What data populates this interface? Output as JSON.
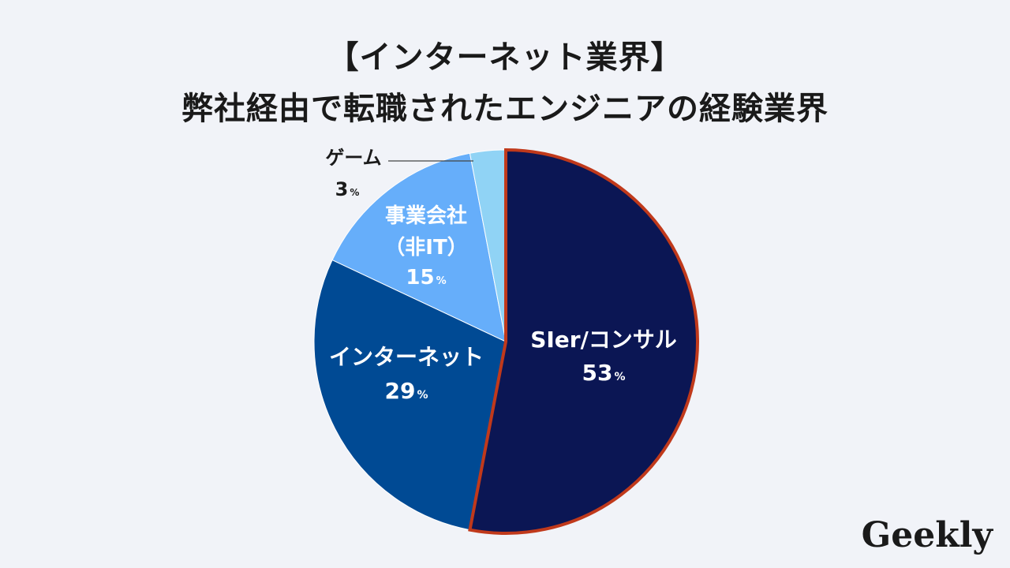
{
  "title": {
    "line1": "【インターネット業界】",
    "line2": "弊社経由で転職されたエンジニアの経験業界"
  },
  "logo_text": "Geekly",
  "chart_data": {
    "type": "pie",
    "title": "【インターネット業界】弊社経由で転職されたエンジニアの経験業界",
    "unit": "%",
    "start_angle_deg": 0,
    "direction": "clockwise",
    "highlighted_slice": 0,
    "highlight_color": "#c0391b",
    "slices": [
      {
        "label": "SIer/コンサル",
        "value": 53,
        "color": "#0b1654",
        "label_color": "#ffffff"
      },
      {
        "label": "インターネット",
        "value": 29,
        "color": "#004a94",
        "label_color": "#ffffff"
      },
      {
        "label": "事業会社\n（非IT）",
        "value": 15,
        "color": "#66aefa",
        "label_color": "#ffffff"
      },
      {
        "label": "ゲーム",
        "value": 3,
        "color": "#90d3f5",
        "label_color": "#1a1a1a",
        "label_position": "outside"
      }
    ],
    "legend": "none"
  }
}
